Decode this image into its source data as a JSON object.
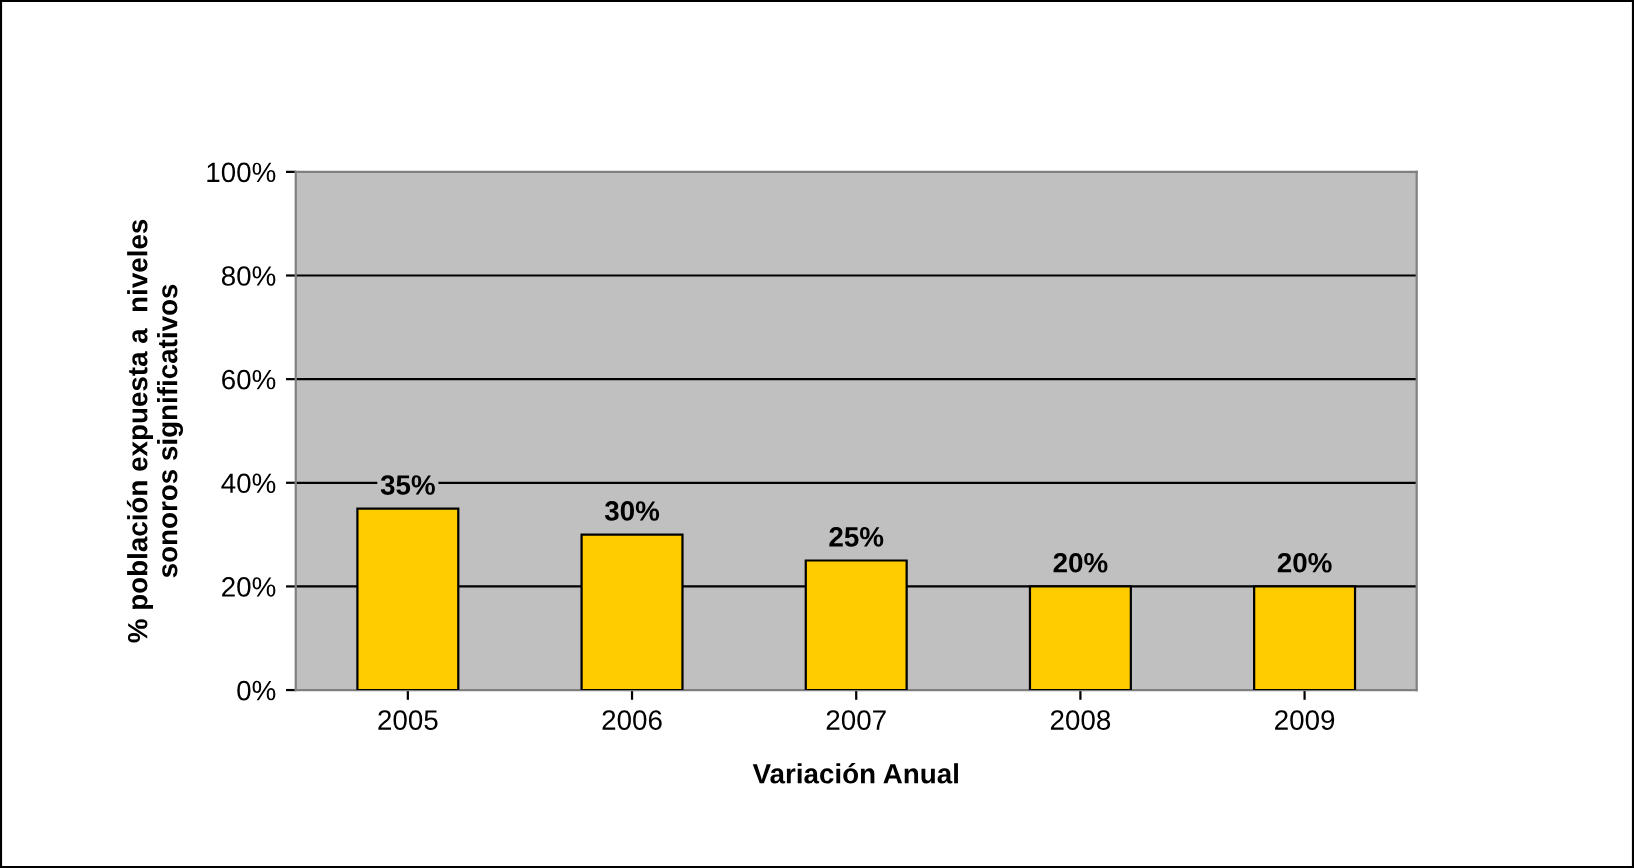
{
  "chart_data": {
    "type": "bar",
    "xlabel": "Variación Anual",
    "ylabel": "% población expuesta a  niveles\nsonoros significativos",
    "categories": [
      "2005",
      "2006",
      "2007",
      "2008",
      "2009"
    ],
    "values": [
      35,
      30,
      25,
      20,
      20
    ],
    "color": "#ffcc00",
    "value_labels": [
      "35%",
      "30%",
      "25%",
      "20%",
      "20%"
    ],
    "ylim": [
      0,
      100
    ],
    "yticks": [
      {
        "value": 0,
        "label": "0%"
      },
      {
        "value": 20,
        "label": "20%"
      },
      {
        "value": 40,
        "label": "40%"
      },
      {
        "value": 60,
        "label": "60%"
      },
      {
        "value": 80,
        "label": "80%"
      },
      {
        "value": 100,
        "label": "100%"
      }
    ],
    "grid": "y",
    "legend": false
  }
}
